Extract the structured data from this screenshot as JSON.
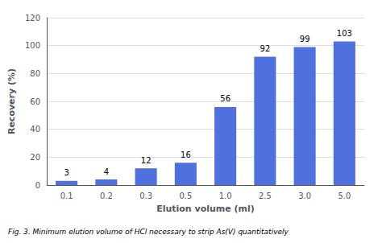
{
  "chart_data": {
    "type": "bar",
    "categories": [
      "0.1",
      "0.2",
      "0.3",
      "0.5",
      "1.0",
      "2.5",
      "3.0",
      "5.0"
    ],
    "values": [
      3,
      4,
      12,
      16,
      56,
      92,
      99,
      103
    ],
    "xlabel": "Elution volume (ml)",
    "ylabel": "Recovery (%)",
    "ylim": [
      0,
      120
    ],
    "yticks": [
      0,
      20,
      40,
      60,
      80,
      100,
      120
    ],
    "grid": true,
    "data_labels": true,
    "caption": "Fig. 3. Minimum elution volume of HCl necessary to strip As(V) quantitatively"
  }
}
